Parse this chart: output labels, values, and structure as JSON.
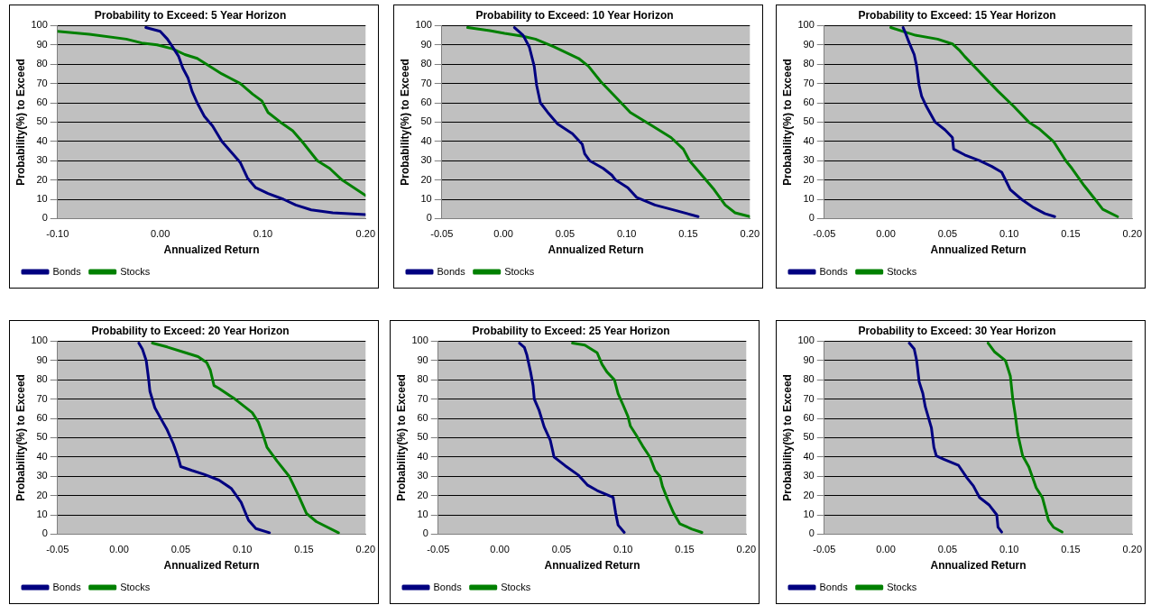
{
  "chart_data": [
    {
      "type": "line",
      "title": "Probability to Exceed: 5 Year Horizon",
      "xlabel": "Annualized Return",
      "ylabel": "Probability(%) to Exceed",
      "xlim": [
        -0.1,
        0.2
      ],
      "xticks": [
        {
          "value": -0.1,
          "label": "-0.10"
        },
        {
          "value": 0,
          "label": "0.00"
        },
        {
          "value": 0.1,
          "label": "0.10"
        },
        {
          "value": 0.2,
          "label": "0.20"
        }
      ],
      "ylim": [
        0,
        100
      ],
      "yticks": [
        0,
        10,
        20,
        30,
        40,
        50,
        60,
        70,
        80,
        90,
        100
      ],
      "grid": "y",
      "legend": "bottom left",
      "marker": "none",
      "series": [
        {
          "name": "Bonds",
          "color": "#000080",
          "x": [
            -0.014,
            0.0,
            0.007,
            0.012,
            0.018,
            0.022,
            0.027,
            0.031,
            0.036,
            0.043,
            0.051,
            0.06,
            0.069,
            0.078,
            0.085,
            0.093,
            0.105,
            0.12,
            0.132,
            0.147,
            0.168,
            0.2
          ],
          "values": [
            99,
            97,
            93,
            89,
            84,
            78,
            73,
            66,
            60,
            53,
            48,
            40,
            34.5,
            29,
            21,
            16,
            13,
            10,
            7,
            4.5,
            3,
            2
          ]
        },
        {
          "name": "Stocks",
          "color": "#008000",
          "x": [
            -0.1,
            -0.069,
            -0.033,
            -0.018,
            -0.003,
            0.012,
            0.024,
            0.036,
            0.051,
            0.06,
            0.078,
            0.09,
            0.099,
            0.105,
            0.117,
            0.129,
            0.138,
            0.153,
            0.165,
            0.177,
            0.2
          ],
          "values": [
            97,
            95.5,
            93,
            91,
            90,
            88,
            85,
            83,
            78,
            75,
            70,
            64.5,
            61,
            55,
            50,
            45.5,
            40,
            30,
            26,
            20,
            12
          ]
        }
      ]
    },
    {
      "type": "line",
      "title": "Probability to Exceed: 10 Year Horizon",
      "xlabel": "Annualized Return",
      "ylabel": "Probability(%) to Exceed",
      "xlim": [
        -0.05,
        0.2
      ],
      "xticks": [
        {
          "value": -0.05,
          "label": "-0.05"
        },
        {
          "value": 0,
          "label": "0.00"
        },
        {
          "value": 0.05,
          "label": "0.05"
        },
        {
          "value": 0.1,
          "label": "0.10"
        },
        {
          "value": 0.15,
          "label": "0.15"
        },
        {
          "value": 0.2,
          "label": "0.20"
        }
      ],
      "ylim": [
        0,
        100
      ],
      "yticks": [
        0,
        10,
        20,
        30,
        40,
        50,
        60,
        70,
        80,
        90,
        100
      ],
      "grid": "y",
      "legend": "bottom left",
      "marker": "none",
      "series": [
        {
          "name": "Bonds",
          "color": "#000080",
          "x": [
            0.009,
            0.016,
            0.021,
            0.025,
            0.027,
            0.03,
            0.036,
            0.044,
            0.056,
            0.064,
            0.066,
            0.07,
            0.081,
            0.088,
            0.091,
            0.101,
            0.108,
            0.123,
            0.141,
            0.158
          ],
          "values": [
            99,
            95,
            89,
            79,
            69,
            60,
            55,
            49,
            44,
            38.5,
            33.5,
            30,
            26,
            22.5,
            20,
            16,
            11,
            7,
            4,
            1
          ]
        },
        {
          "name": "Stocks",
          "color": "#008000",
          "x": [
            -0.029,
            -0.011,
            0.001,
            0.016,
            0.026,
            0.041,
            0.051,
            0.061,
            0.069,
            0.079,
            0.091,
            0.103,
            0.121,
            0.136,
            0.146,
            0.151,
            0.161,
            0.171,
            0.18,
            0.188,
            0.2
          ],
          "values": [
            99,
            97.4,
            96,
            94.5,
            93,
            89,
            86,
            83,
            79,
            71,
            63,
            55,
            48,
            42,
            36,
            30,
            22.5,
            15,
            7,
            3,
            1
          ]
        }
      ]
    },
    {
      "type": "line",
      "title": "Probability to Exceed: 15 Year Horizon",
      "xlabel": "Annualized Return",
      "ylabel": "Probability(%) to Exceed",
      "xlim": [
        -0.05,
        0.2
      ],
      "xticks": [
        {
          "value": -0.05,
          "label": "-0.05"
        },
        {
          "value": 0,
          "label": "0.00"
        },
        {
          "value": 0.05,
          "label": "0.05"
        },
        {
          "value": 0.1,
          "label": "0.10"
        },
        {
          "value": 0.15,
          "label": "0.15"
        },
        {
          "value": 0.2,
          "label": "0.20"
        }
      ],
      "ylim": [
        0,
        100
      ],
      "yticks": [
        0,
        10,
        20,
        30,
        40,
        50,
        60,
        70,
        80,
        90,
        100
      ],
      "grid": "y",
      "legend": "bottom left",
      "marker": "none",
      "series": [
        {
          "name": "Bonds",
          "color": "#000080",
          "x": [
            0.014,
            0.016,
            0.019,
            0.023,
            0.025,
            0.027,
            0.029,
            0.033,
            0.04,
            0.048,
            0.054,
            0.055,
            0.064,
            0.076,
            0.086,
            0.094,
            0.101,
            0.11,
            0.119,
            0.129,
            0.137
          ],
          "values": [
            99,
            96,
            91,
            85,
            79,
            69,
            63.5,
            58,
            50,
            46,
            42,
            36,
            33,
            30,
            27,
            24,
            15,
            10,
            6,
            2.6,
            1
          ]
        },
        {
          "name": "Stocks",
          "color": "#008000",
          "x": [
            0.004,
            0.014,
            0.024,
            0.042,
            0.054,
            0.06,
            0.064,
            0.076,
            0.091,
            0.104,
            0.116,
            0.124,
            0.136,
            0.146,
            0.151,
            0.161,
            0.169,
            0.176,
            0.188
          ],
          "values": [
            99,
            97,
            95,
            93,
            90.5,
            87,
            84,
            76,
            66,
            58,
            50,
            46.7,
            40,
            30,
            26,
            17,
            10.6,
            4.8,
            1
          ]
        }
      ]
    },
    {
      "type": "line",
      "title": "Probability to Exceed: 20 Year Horizon",
      "xlabel": "Annualized Return",
      "ylabel": "Probability(%) to Exceed",
      "xlim": [
        -0.05,
        0.2
      ],
      "xticks": [
        {
          "value": -0.05,
          "label": "-0.05"
        },
        {
          "value": 0,
          "label": "0.00"
        },
        {
          "value": 0.05,
          "label": "0.05"
        },
        {
          "value": 0.1,
          "label": "0.10"
        },
        {
          "value": 0.15,
          "label": "0.15"
        },
        {
          "value": 0.2,
          "label": "0.20"
        }
      ],
      "ylim": [
        0,
        100
      ],
      "yticks": [
        0,
        10,
        20,
        30,
        40,
        50,
        60,
        70,
        80,
        90,
        100
      ],
      "grid": "y",
      "legend": "bottom left",
      "marker": "none",
      "series": [
        {
          "name": "Bonds",
          "color": "#000080",
          "x": [
            0.016,
            0.019,
            0.022,
            0.024,
            0.025,
            0.029,
            0.034,
            0.039,
            0.044,
            0.048,
            0.05,
            0.059,
            0.069,
            0.081,
            0.091,
            0.099,
            0.105,
            0.111,
            0.122
          ],
          "values": [
            99,
            95.7,
            89.9,
            80,
            74,
            65.5,
            59.7,
            54,
            46.8,
            39.6,
            35,
            33,
            31,
            28,
            23.7,
            16.5,
            7.2,
            2.9,
            0.7
          ]
        },
        {
          "name": "Stocks",
          "color": "#008000",
          "x": [
            0.027,
            0.039,
            0.054,
            0.064,
            0.071,
            0.074,
            0.077,
            0.081,
            0.094,
            0.108,
            0.113,
            0.117,
            0.12,
            0.128,
            0.138,
            0.146,
            0.152,
            0.16,
            0.178
          ],
          "values": [
            99,
            97,
            94,
            92,
            89,
            85,
            77,
            75.5,
            70,
            63,
            58,
            51,
            45,
            38,
            30,
            19.4,
            10.8,
            6.5,
            0.7
          ]
        }
      ]
    },
    {
      "type": "line",
      "title": "Probability to Exceed: 25 Year Horizon",
      "xlabel": "Annualized Return",
      "ylabel": "Probability(%) to Exceed",
      "xlim": [
        -0.05,
        0.2
      ],
      "xticks": [
        {
          "value": -0.05,
          "label": "-0.05"
        },
        {
          "value": 0,
          "label": "0.00"
        },
        {
          "value": 0.05,
          "label": "0.05"
        },
        {
          "value": 0.1,
          "label": "0.10"
        },
        {
          "value": 0.15,
          "label": "0.15"
        },
        {
          "value": 0.2,
          "label": "0.20"
        }
      ],
      "ylim": [
        0,
        100
      ],
      "yticks": [
        0,
        10,
        20,
        30,
        40,
        50,
        60,
        70,
        80,
        90,
        100
      ],
      "grid": "y",
      "legend": "bottom left",
      "marker": "none",
      "series": [
        {
          "name": "Bonds",
          "color": "#000080",
          "x": [
            0.016,
            0.02,
            0.022,
            0.025,
            0.027,
            0.028,
            0.032,
            0.036,
            0.041,
            0.043,
            0.044,
            0.053,
            0.064,
            0.071,
            0.079,
            0.092,
            0.094,
            0.096,
            0.101
          ],
          "values": [
            99,
            96.7,
            92.8,
            84,
            77,
            70,
            64,
            55.6,
            48.6,
            43,
            40,
            35.5,
            30.5,
            25.5,
            22.6,
            19,
            11,
            4.7,
            0.9
          ]
        },
        {
          "name": "Stocks",
          "color": "#008000",
          "x": [
            0.059,
            0.069,
            0.079,
            0.083,
            0.087,
            0.093,
            0.096,
            0.1,
            0.104,
            0.106,
            0.111,
            0.116,
            0.122,
            0.126,
            0.13,
            0.132,
            0.136,
            0.141,
            0.146,
            0.156,
            0.164
          ],
          "values": [
            99,
            98,
            94,
            88,
            84,
            80,
            72.8,
            67,
            61,
            56,
            51,
            45.6,
            39.8,
            33,
            30,
            24.8,
            18.3,
            11,
            5.4,
            2.6,
            0.9
          ]
        }
      ]
    },
    {
      "type": "line",
      "title": "Probability to Exceed: 30 Year Horizon",
      "xlabel": "Annualized Return",
      "ylabel": "Probability(%) to Exceed",
      "xlim": [
        -0.05,
        0.2
      ],
      "xticks": [
        {
          "value": -0.05,
          "label": "-0.05"
        },
        {
          "value": 0,
          "label": "0.00"
        },
        {
          "value": 0.05,
          "label": "0.05"
        },
        {
          "value": 0.1,
          "label": "0.10"
        },
        {
          "value": 0.15,
          "label": "0.15"
        },
        {
          "value": 0.2,
          "label": "0.20"
        }
      ],
      "ylim": [
        0,
        100
      ],
      "yticks": [
        0,
        10,
        20,
        30,
        40,
        50,
        60,
        70,
        80,
        90,
        100
      ],
      "grid": "y",
      "legend": "bottom left",
      "marker": "none",
      "series": [
        {
          "name": "Bonds",
          "color": "#000080",
          "x": [
            0.019,
            0.023,
            0.025,
            0.027,
            0.03,
            0.032,
            0.037,
            0.039,
            0.041,
            0.047,
            0.059,
            0.066,
            0.071,
            0.076,
            0.084,
            0.09,
            0.091,
            0.094
          ],
          "values": [
            99,
            96,
            90,
            79,
            73,
            66,
            55,
            45,
            40.5,
            38.8,
            35.6,
            29,
            25,
            19,
            15,
            10,
            3.6,
            1.1
          ]
        },
        {
          "name": "Stocks",
          "color": "#008000",
          "x": [
            0.083,
            0.088,
            0.097,
            0.101,
            0.103,
            0.105,
            0.107,
            0.111,
            0.116,
            0.122,
            0.127,
            0.132,
            0.136,
            0.143
          ],
          "values": [
            99,
            94.6,
            90,
            82,
            70,
            61.9,
            52,
            40.6,
            34.9,
            24,
            19,
            7.1,
            3.6,
            1.1
          ]
        }
      ]
    }
  ]
}
